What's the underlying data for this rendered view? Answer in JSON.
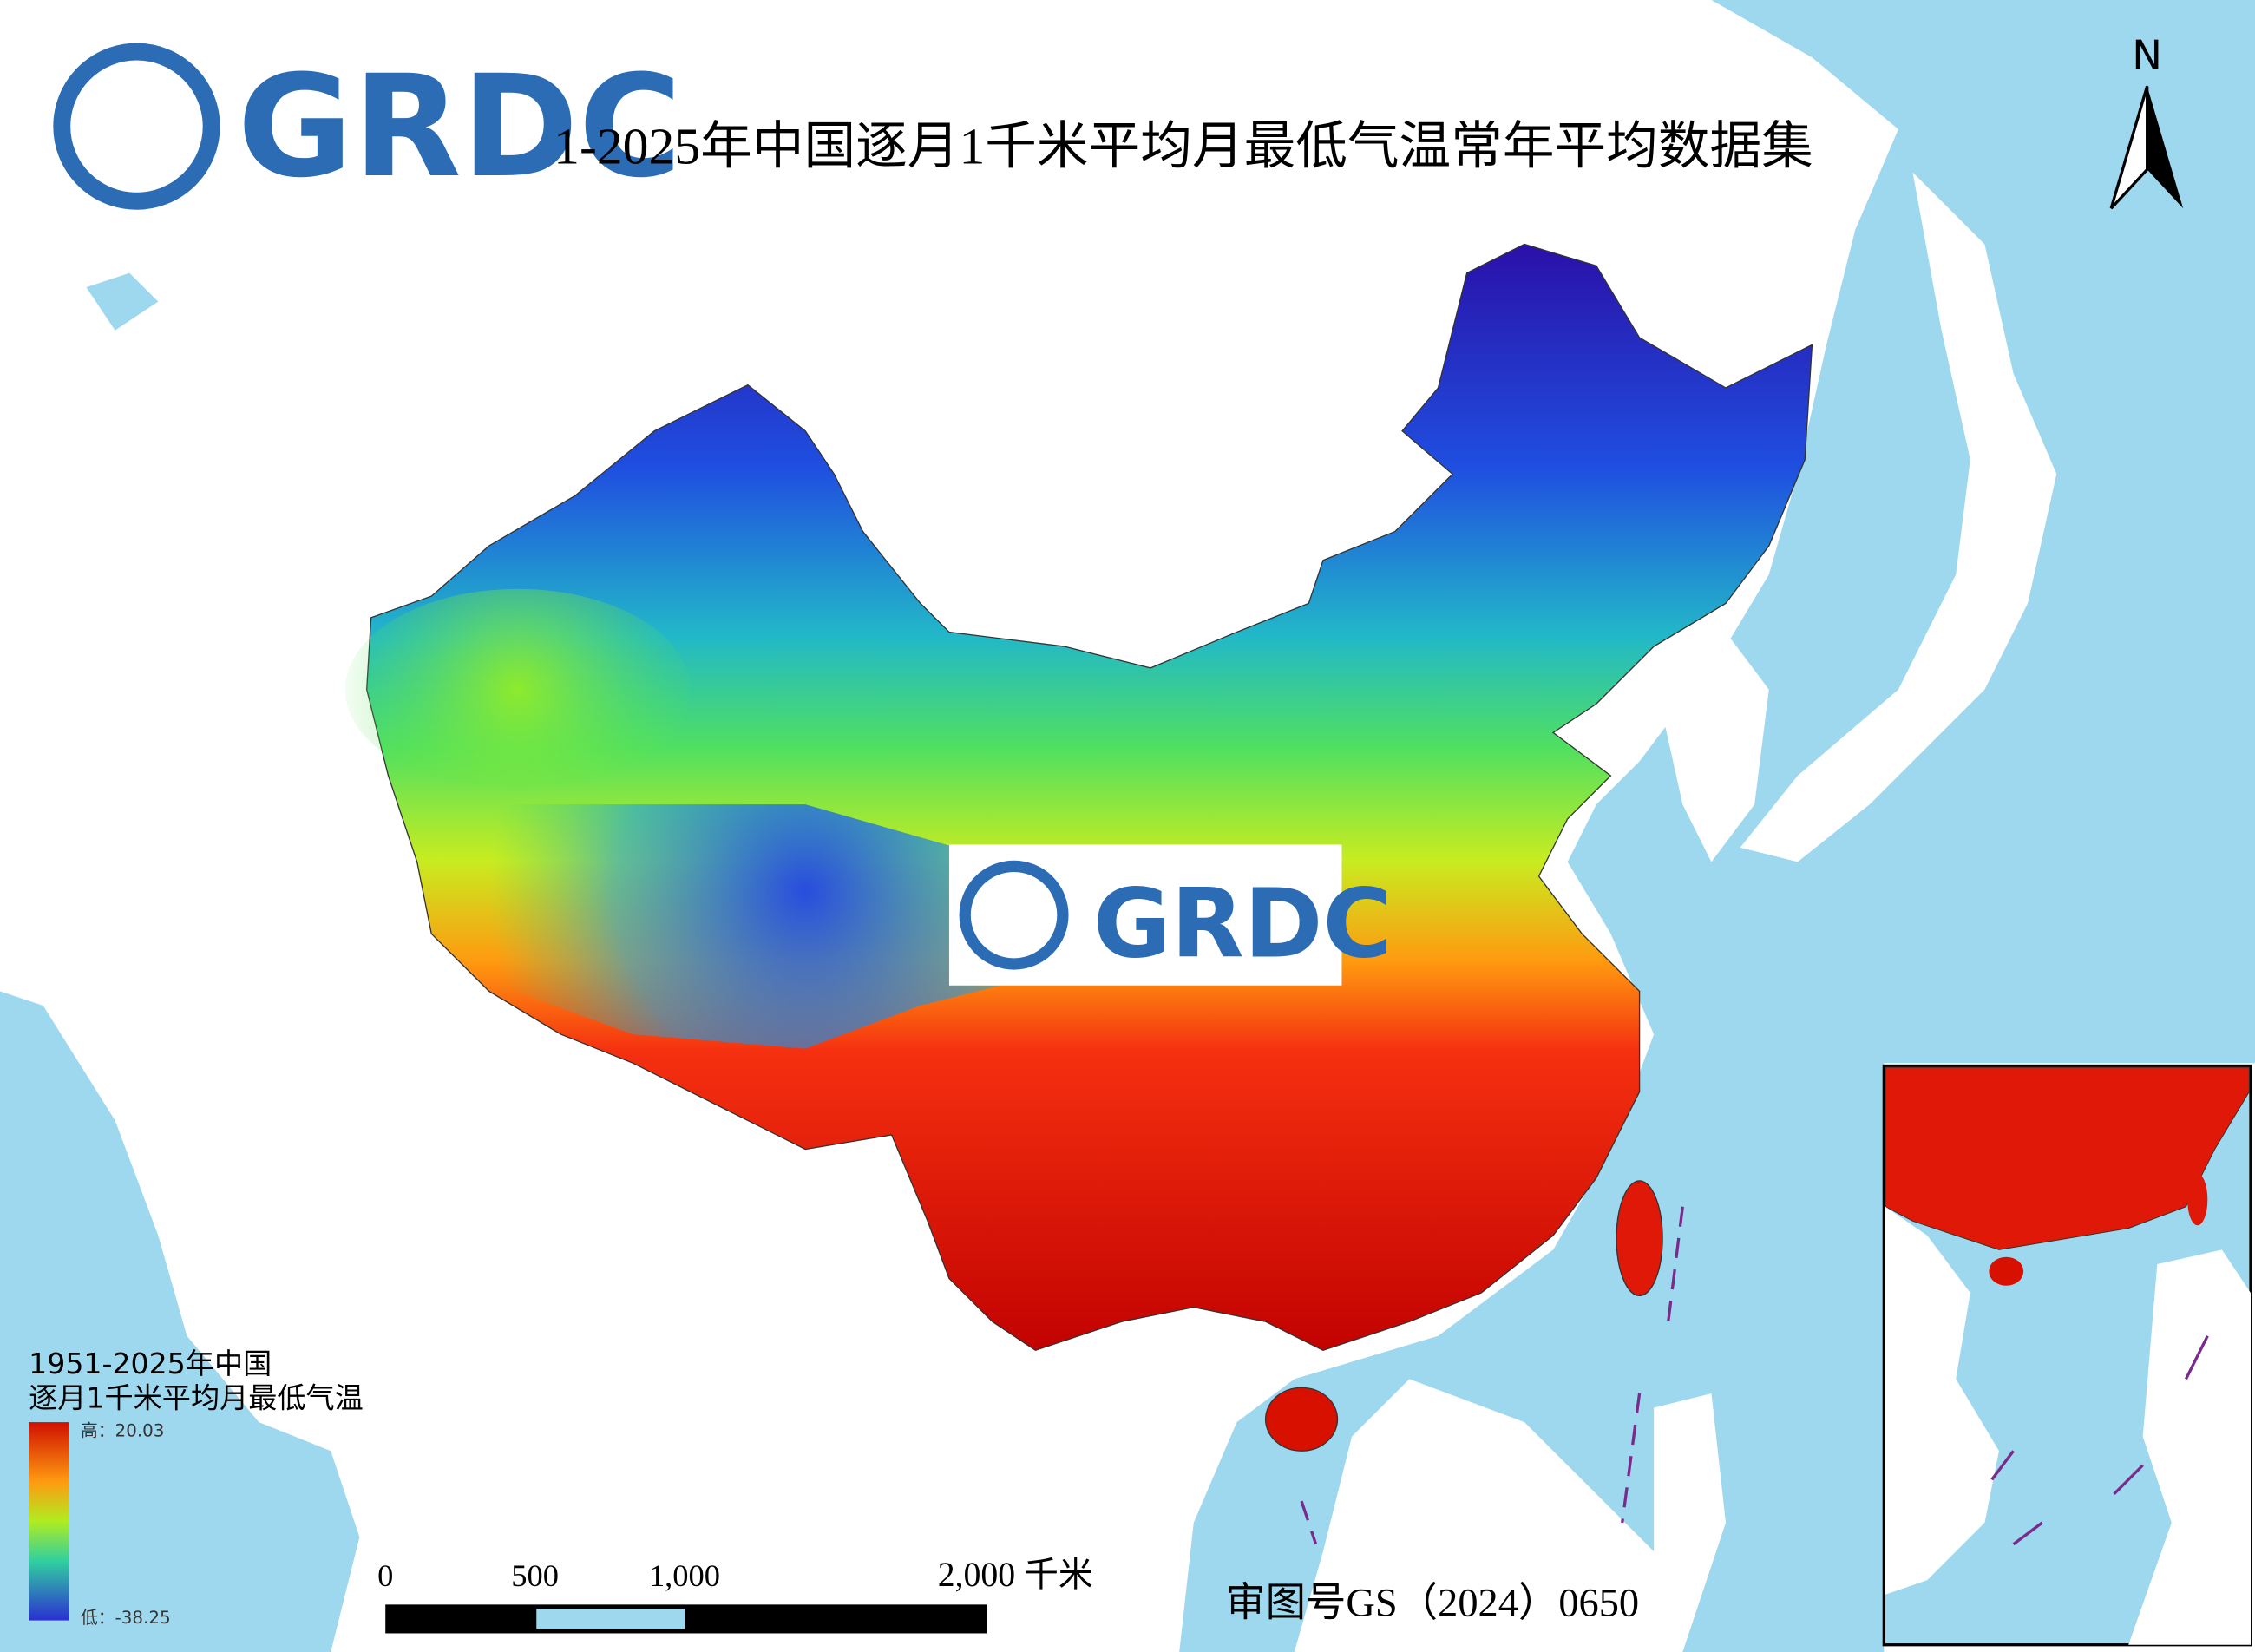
{
  "header": {
    "logo": "GRDC",
    "title": "1-2025年中国逐月1千米平均月最低气温常年平均数据集"
  },
  "watermark": "GRDC",
  "north": "N",
  "legend": {
    "title": [
      "1951-2025年中国",
      "逐月1千米平均月最低气温"
    ],
    "high": "高：20.03",
    "low": "低：-38.25"
  },
  "scale_bar": {
    "labels": [
      "0",
      "500",
      "1,000",
      "2,000 千米"
    ]
  },
  "approval": "审图号GS（2024）0650"
}
